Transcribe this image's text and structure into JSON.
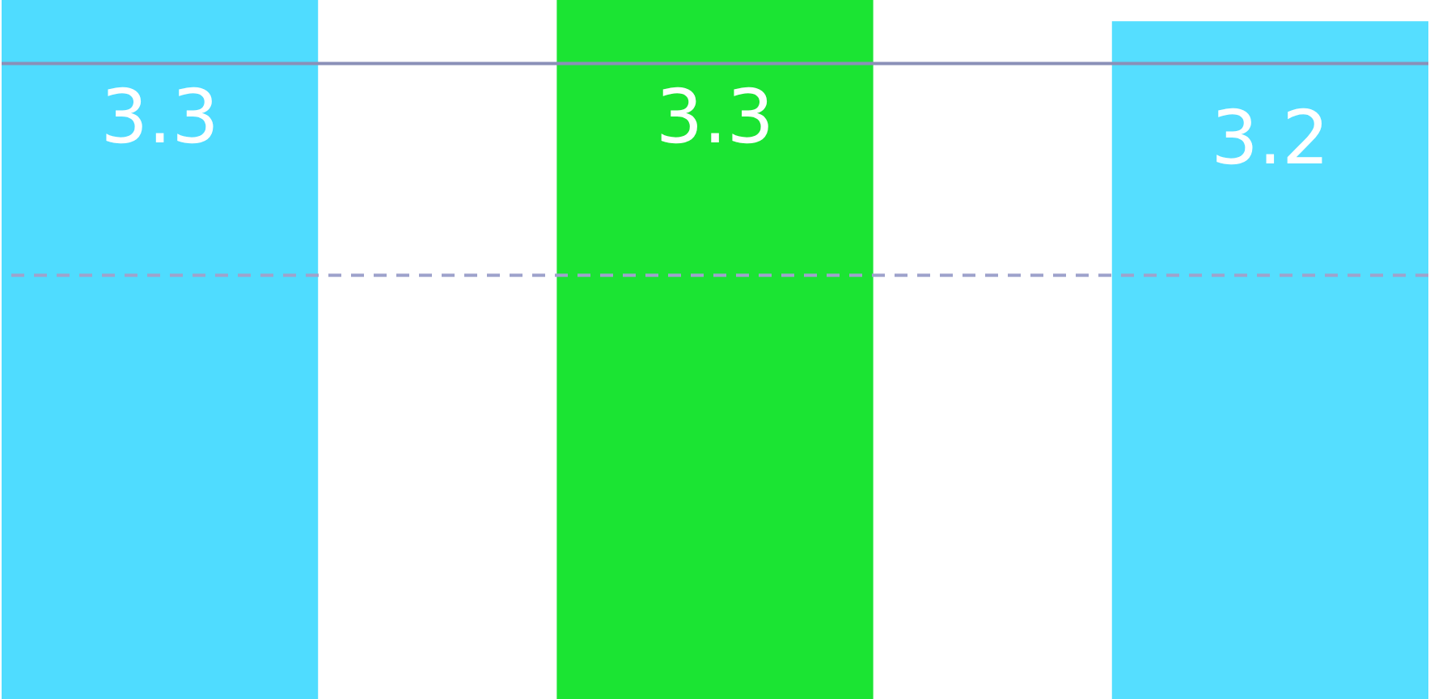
{
  "chart_data": {
    "type": "bar",
    "categories": [
      null,
      null,
      null
    ],
    "values": [
      3.3,
      3.3,
      3.2
    ],
    "colors": [
      "#4fdcff",
      "#1be433",
      "#55deff"
    ],
    "ylim": [
      0,
      3.3
    ],
    "tick_labels": false,
    "grid": false,
    "legend": false,
    "data_labels": true,
    "ref_lines": [
      {
        "axis": "y",
        "value": 3.0,
        "color": "#8a90b8",
        "line_style": "solid"
      },
      {
        "axis": "y",
        "value": 2.0,
        "color": "#9ea3cc",
        "line_style": "dashed"
      }
    ]
  }
}
